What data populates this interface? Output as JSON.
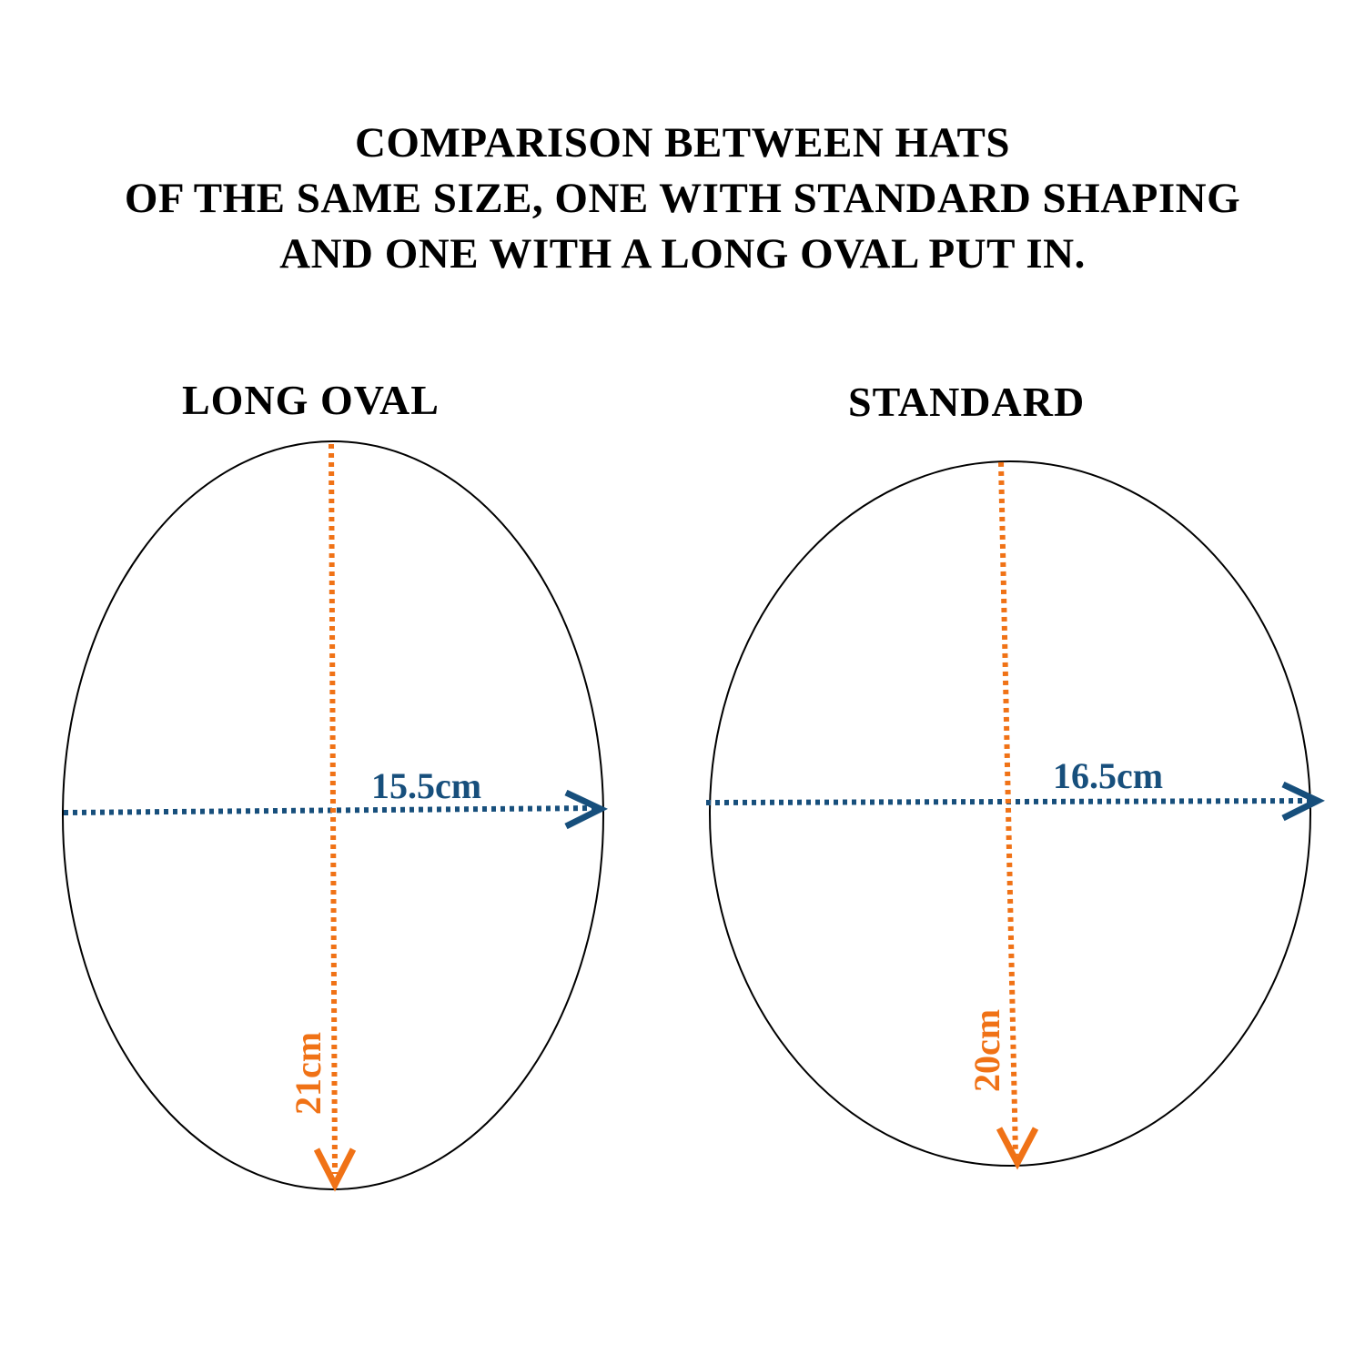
{
  "title": {
    "line1": "COMPARISON BETWEEN HATS",
    "line2": "OF THE SAME SIZE, ONE WITH STANDARD SHAPING",
    "line3": "AND ONE WITH A LONG OVAL PUT IN."
  },
  "colors": {
    "length_arrow": "#f07216",
    "width_arrow": "#174f7c",
    "outline": "#000000"
  },
  "shapes": [
    {
      "label": "LONG OVAL",
      "width_measure": "15.5cm",
      "length_measure": "21cm"
    },
    {
      "label": "STANDARD",
      "width_measure": "16.5cm",
      "length_measure": "20cm"
    }
  ]
}
